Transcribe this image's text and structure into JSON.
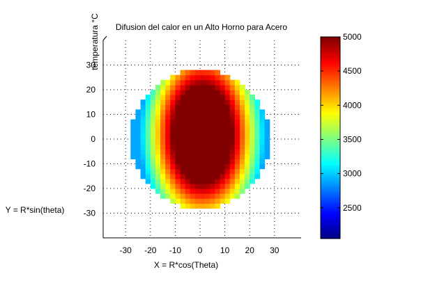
{
  "chart_data": {
    "type": "heatmap",
    "title": "Difusion del calor en un Alto Horno para Acero",
    "xlabel": "X = R*cos(Theta)",
    "ylabel": "Y = R*sin(theta)",
    "zlabel": "temperatura °C",
    "xlim": [
      -40,
      40
    ],
    "ylim": [
      -40,
      40
    ],
    "x_ticks": [
      -30,
      -20,
      -10,
      0,
      10,
      20,
      30
    ],
    "y_ticks": [
      -30,
      -20,
      -10,
      0,
      10,
      20,
      30
    ],
    "grid": true,
    "colormap": "jet",
    "colorbar": {
      "min": 2050,
      "max": 5000,
      "ticks": [
        2500,
        3000,
        3500,
        4000,
        4500,
        5000
      ]
    },
    "field": {
      "domain": "disk",
      "outer_radius": 28,
      "hot_core": {
        "center": [
          1,
          2
        ],
        "x_halfwidth": 12,
        "y_halfwidth": 20,
        "value": 5000
      },
      "edge_value": 2900
    }
  }
}
